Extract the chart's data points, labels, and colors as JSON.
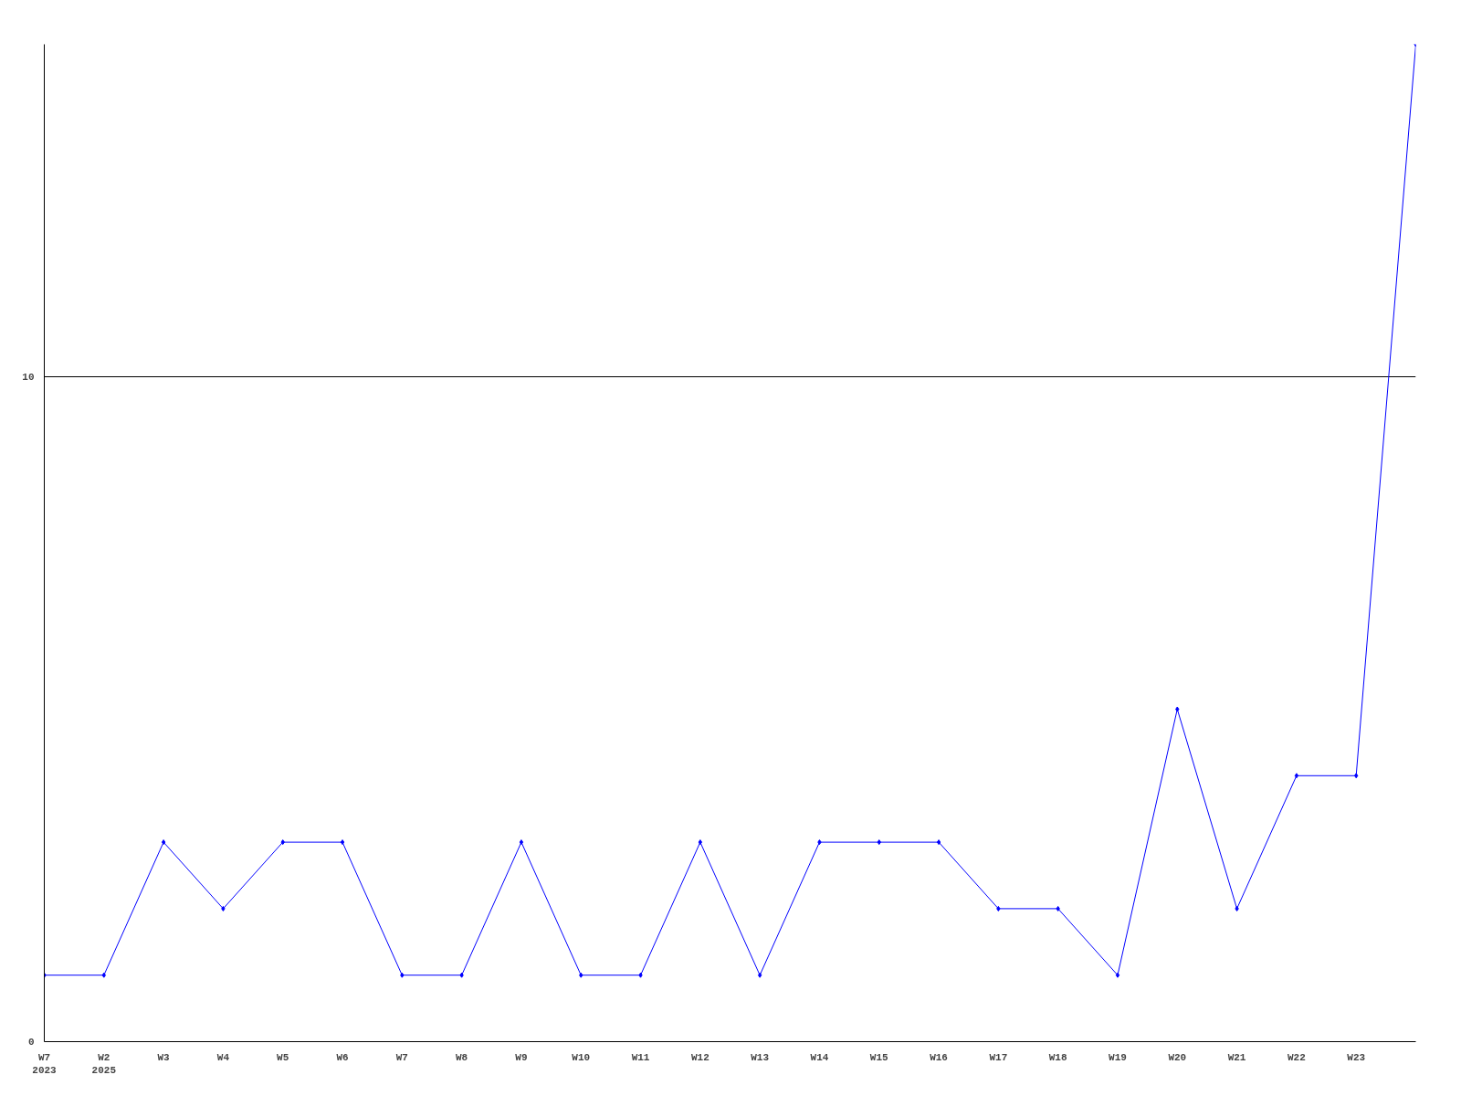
{
  "chart_data": {
    "type": "line",
    "categories": [
      "W7\n2023",
      "W2\n2025",
      "W3",
      "W4",
      "W5",
      "W6",
      "W7",
      "W8",
      "W9",
      "W10",
      "W11",
      "W12",
      "W13",
      "W14",
      "W15",
      "W16",
      "W17",
      "W18",
      "W19",
      "W20",
      "W21",
      "W22",
      "W23",
      null
    ],
    "series": [
      {
        "color": "#0000ff",
        "values": [
          1,
          1,
          3,
          2,
          3,
          3,
          1,
          1,
          3,
          1,
          1,
          3,
          1,
          3,
          3,
          3,
          2,
          2,
          1,
          5,
          2,
          4,
          4,
          15
        ]
      }
    ],
    "ylim": [
      0,
      15
    ],
    "yticks": [
      0,
      10
    ],
    "grid": "y",
    "marker": "diamond",
    "line_style": "solid"
  }
}
